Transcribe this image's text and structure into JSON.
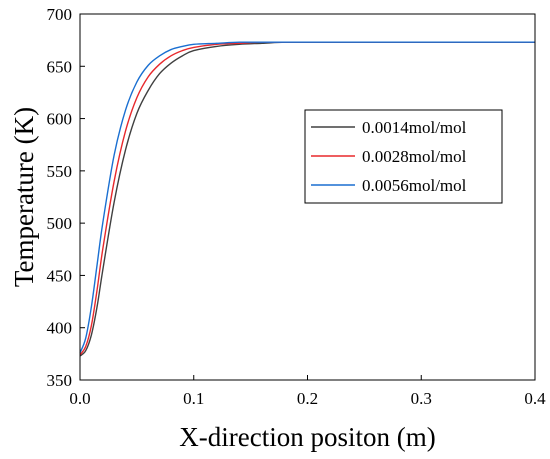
{
  "chart_data": {
    "type": "line",
    "title": "",
    "xlabel": "X-direction positon (m)",
    "ylabel": "Temperature (K)",
    "xlim": [
      0.0,
      0.4
    ],
    "ylim": [
      350,
      700
    ],
    "xticks": [
      0.0,
      0.1,
      0.2,
      0.3,
      0.4
    ],
    "xtick_labels": [
      "0.0",
      "0.1",
      "0.2",
      "0.3",
      "0.4"
    ],
    "yticks": [
      350,
      400,
      450,
      500,
      550,
      600,
      650,
      700
    ],
    "ytick_labels": [
      "350",
      "400",
      "450",
      "500",
      "550",
      "600",
      "650",
      "700"
    ],
    "grid": false,
    "legend_position": "center-right",
    "series": [
      {
        "name": "0.0014mol/mol",
        "color": "#404040",
        "x": [
          0.0,
          0.005,
          0.01,
          0.015,
          0.02,
          0.03,
          0.04,
          0.05,
          0.06,
          0.07,
          0.08,
          0.09,
          0.1,
          0.12,
          0.14,
          0.16,
          0.18,
          0.2,
          0.25,
          0.3,
          0.35,
          0.4
        ],
        "y": [
          373,
          378,
          393,
          420,
          455,
          520,
          570,
          605,
          627,
          643,
          653,
          660,
          665,
          669,
          671,
          672,
          673,
          673,
          673,
          673,
          673,
          673
        ]
      },
      {
        "name": "0.0028mol/mol",
        "color": "#e8282c",
        "x": [
          0.0,
          0.005,
          0.01,
          0.015,
          0.02,
          0.03,
          0.04,
          0.05,
          0.06,
          0.07,
          0.08,
          0.09,
          0.1,
          0.12,
          0.14,
          0.16,
          0.18,
          0.2,
          0.25,
          0.3,
          0.35,
          0.4
        ],
        "y": [
          374,
          382,
          402,
          436,
          475,
          540,
          588,
          620,
          640,
          652,
          660,
          665,
          668,
          671,
          672,
          673,
          673,
          673,
          673,
          673,
          673,
          673
        ]
      },
      {
        "name": "0.0056mol/mol",
        "color": "#1a6fd1",
        "x": [
          0.0,
          0.005,
          0.01,
          0.015,
          0.02,
          0.03,
          0.04,
          0.05,
          0.06,
          0.07,
          0.08,
          0.09,
          0.1,
          0.12,
          0.14,
          0.16,
          0.18,
          0.2,
          0.25,
          0.3,
          0.35,
          0.4
        ],
        "y": [
          376,
          390,
          420,
          460,
          500,
          565,
          608,
          635,
          651,
          660,
          666,
          669,
          671,
          672,
          673,
          673,
          673,
          673,
          673,
          673,
          673,
          673
        ]
      }
    ]
  }
}
